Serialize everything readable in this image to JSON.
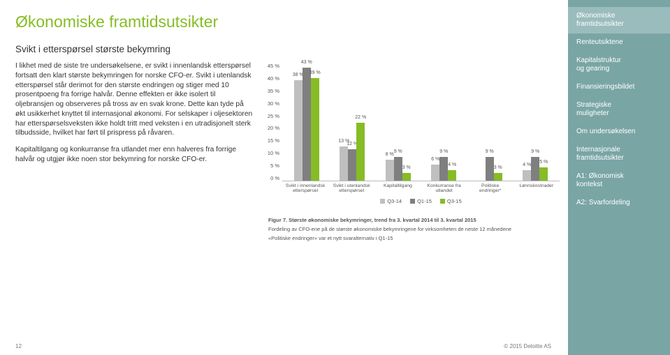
{
  "title": "Økonomiske framtidsutsikter",
  "subtitle": "Svikt i etterspørsel største bekymring",
  "paragraphs": {
    "p1": "I likhet med de siste tre undersøkelsene, er svikt i innenlandsk etterspørsel fortsatt den klart største bekymringen for norske CFO-er. Svikt i utenlandsk etterspørsel står derimot for den største endringen og stiger med 10 prosentpoeng fra forrige halvår. Denne effekten er ikke isolert til oljebransjen og observeres på tross av en svak krone. Dette kan tyde på økt usikkerhet knyttet til internasjonal økonomi. For selskaper i oljesektoren har etterspørselsveksten ikke holdt tritt med veksten i en utradisjonelt sterk tilbudsside, hvilket har ført til prispress på råvaren.",
    "p2": "Kapitaltilgang og konkurranse fra utlandet mer enn halveres fra forrige halvår og utgjør ikke noen stor bekymring for norske CFO-er."
  },
  "chart": {
    "type": "bar",
    "ylim": [
      0,
      45
    ],
    "ytick_step": 5,
    "yticks": [
      "45 %",
      "40 %",
      "35 %",
      "30 %",
      "25 %",
      "20 %",
      "15 %",
      "10 %",
      "5 %",
      "0 %"
    ],
    "categories": [
      "Svikt i innenlandsk\netterspørsel",
      "Svikt i utenlandsk\netterspørsel",
      "Kapitaltilgang",
      "Konkurranse fra\nutlandet",
      "Politiske\nendringer*",
      "Lønnskostnader"
    ],
    "series": [
      {
        "name": "Q3-14",
        "color": "#bfbfbf",
        "values": [
          38,
          13,
          8,
          6,
          null,
          4
        ]
      },
      {
        "name": "Q1-15",
        "color": "#7f7f7f",
        "values": [
          43,
          12,
          9,
          9,
          9,
          9
        ]
      },
      {
        "name": "Q3-15",
        "color": "#86bc25",
        "values": [
          39,
          22,
          3,
          4,
          3,
          5
        ]
      }
    ],
    "legend_labels": {
      "q314": "Q3-14",
      "q115": "Q1-15",
      "q315": "Q3-15"
    },
    "caption_title": "Figur 7. Største økonomiske bekymringer, trend fra 3. kvartal 2014 til 3. kvartal 2015",
    "caption_sub": "Fordeling av CFO-ene på de største økonomiske bekymringene for virksomheten de neste 12 månedene",
    "caption_note": "«Politiske endringer» var et nytt svaralternativ i Q1-15"
  },
  "sidebar": {
    "items": [
      {
        "label": "Økonomiske\nframtidsutsikter",
        "active": true
      },
      {
        "label": "Renteutsiktene"
      },
      {
        "label": "Kapitalstruktur\nog gearing"
      },
      {
        "label": "Finansieringsbildet"
      },
      {
        "label": "Strategiske\nmuligheter"
      },
      {
        "label": "Om undersøkelsen"
      },
      {
        "label": "Internasjonale\nframtidsutsikter"
      },
      {
        "label": "A1: Økonomisk\nkontekst"
      },
      {
        "label": "A2: Svarfordeling"
      }
    ]
  },
  "footer": {
    "page": "12",
    "copyright": "© 2015 Deloitte AS"
  }
}
